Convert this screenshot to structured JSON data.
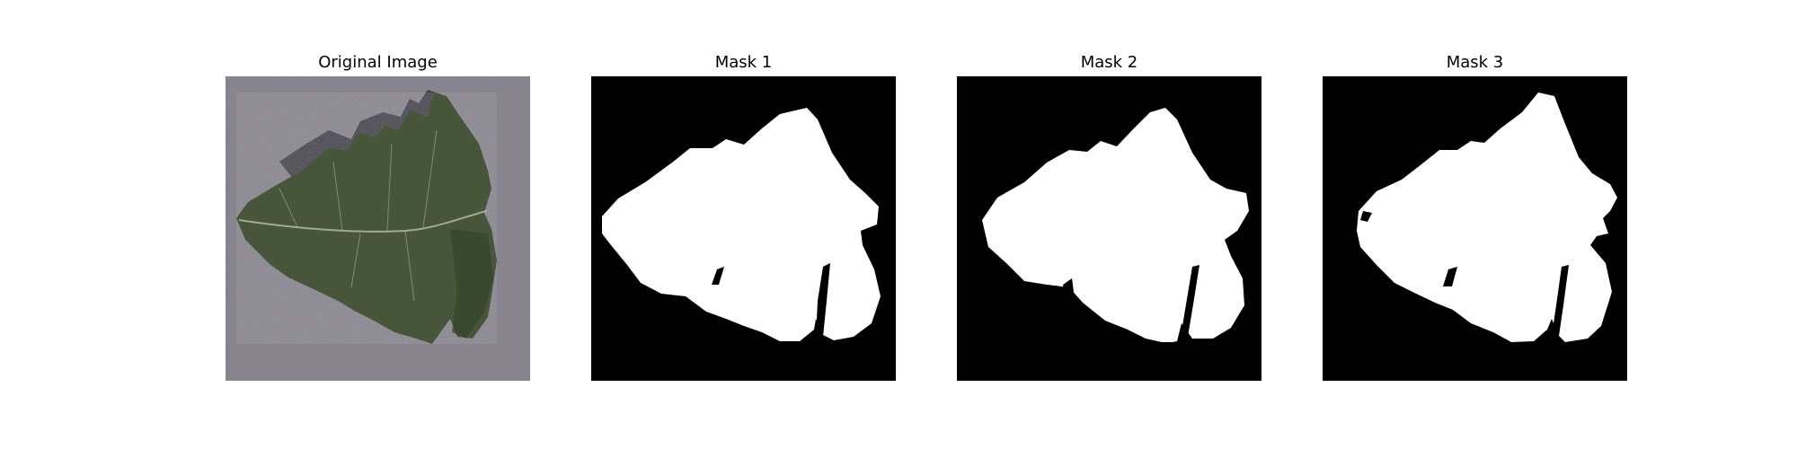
{
  "panels": [
    {
      "title": "Original Image",
      "kind": "photo",
      "subject": "leaf-photo"
    },
    {
      "title": "Mask 1",
      "kind": "binary-mask"
    },
    {
      "title": "Mask 2",
      "kind": "binary-mask"
    },
    {
      "title": "Mask 3",
      "kind": "binary-mask"
    }
  ],
  "colors": {
    "background_photo": "#8e8a95",
    "leaf": "#4a5a3c",
    "leaf_dark": "#34432b",
    "leaf_vein": "#b7bfa8",
    "shadow": "#2e2c33",
    "mask_background": "#000000",
    "mask_foreground": "#ffffff"
  }
}
